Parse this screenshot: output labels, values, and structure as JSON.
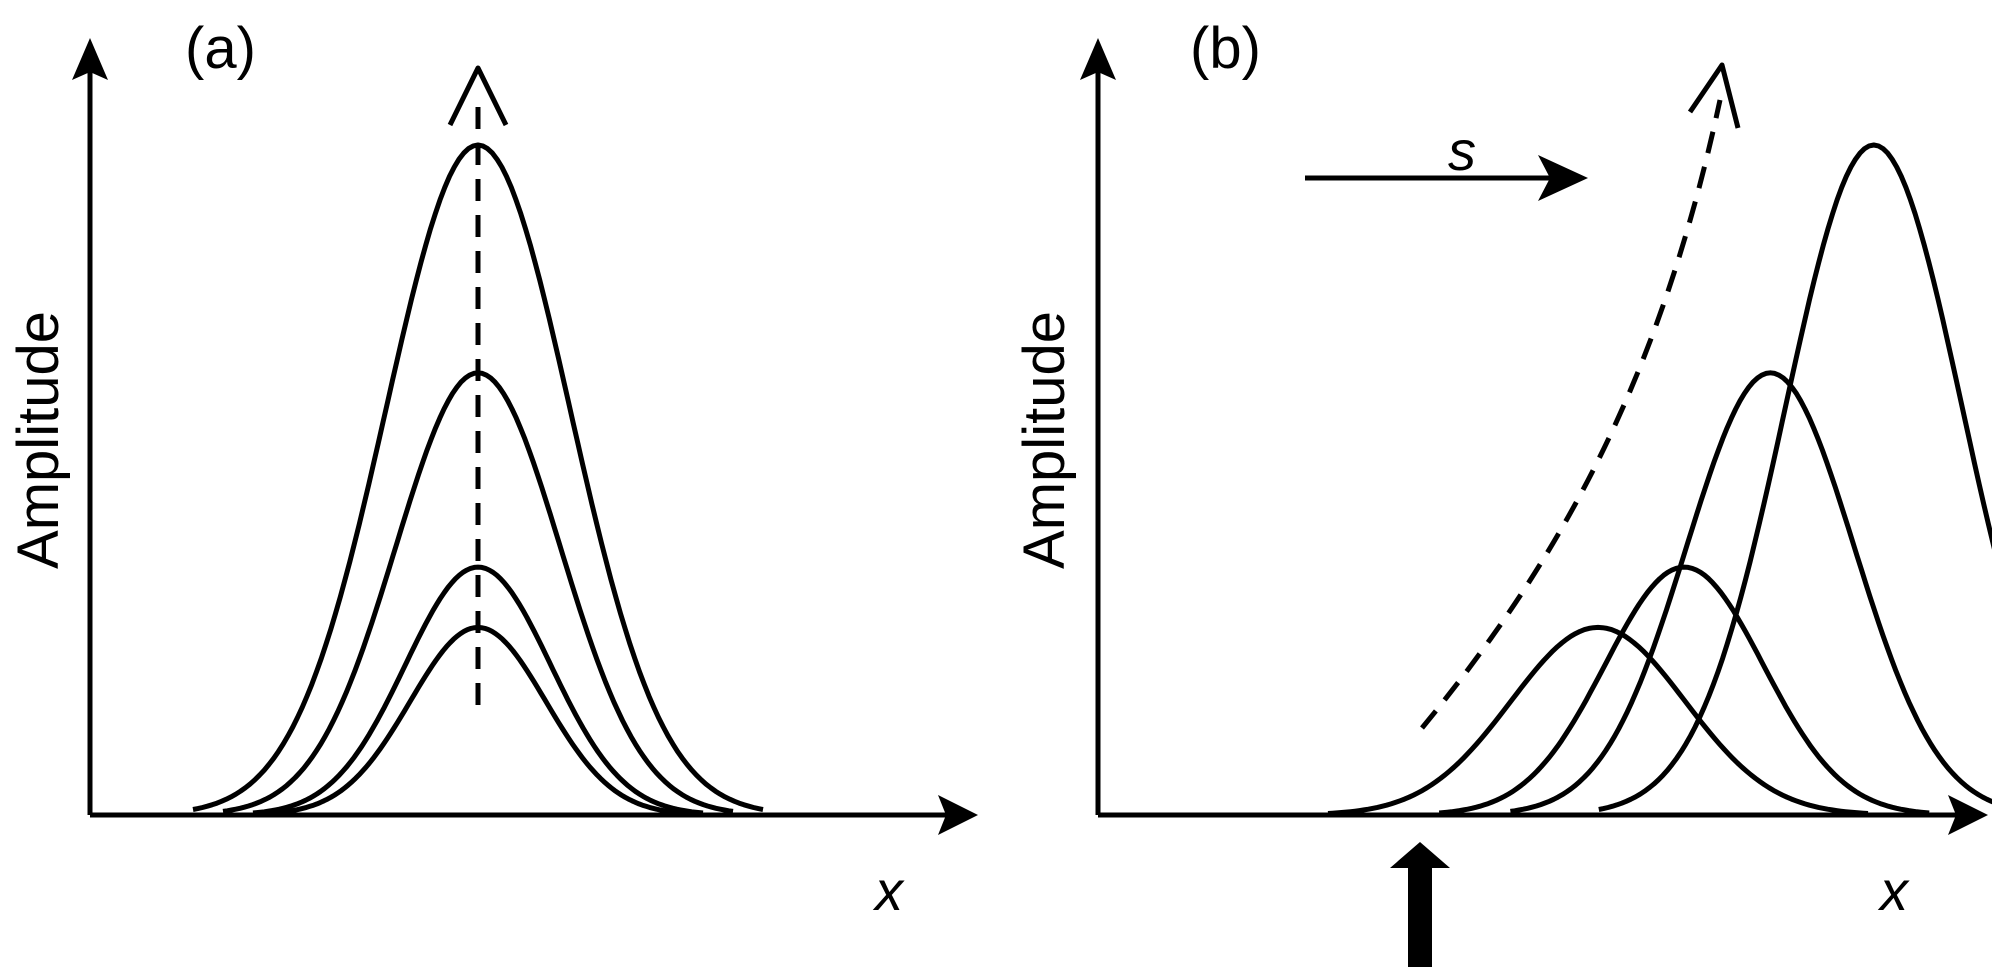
{
  "panels": [
    {
      "label": "(a)",
      "y_axis_title": "Amplitude",
      "x_axis_label": "x",
      "pulse_peak_heights": [
        1.0,
        0.66,
        0.37,
        0.28
      ]
    },
    {
      "label": "(b)",
      "y_axis_title": "Amplitude",
      "x_axis_label": "x",
      "shift_label": "s",
      "pulse_peak_heights": [
        0.28,
        0.37,
        0.66,
        1.0
      ],
      "pulse_centers": [
        0.58,
        0.68,
        0.78,
        0.9
      ]
    }
  ],
  "colors": {
    "ink": "#000000",
    "background": "#ffffff"
  }
}
